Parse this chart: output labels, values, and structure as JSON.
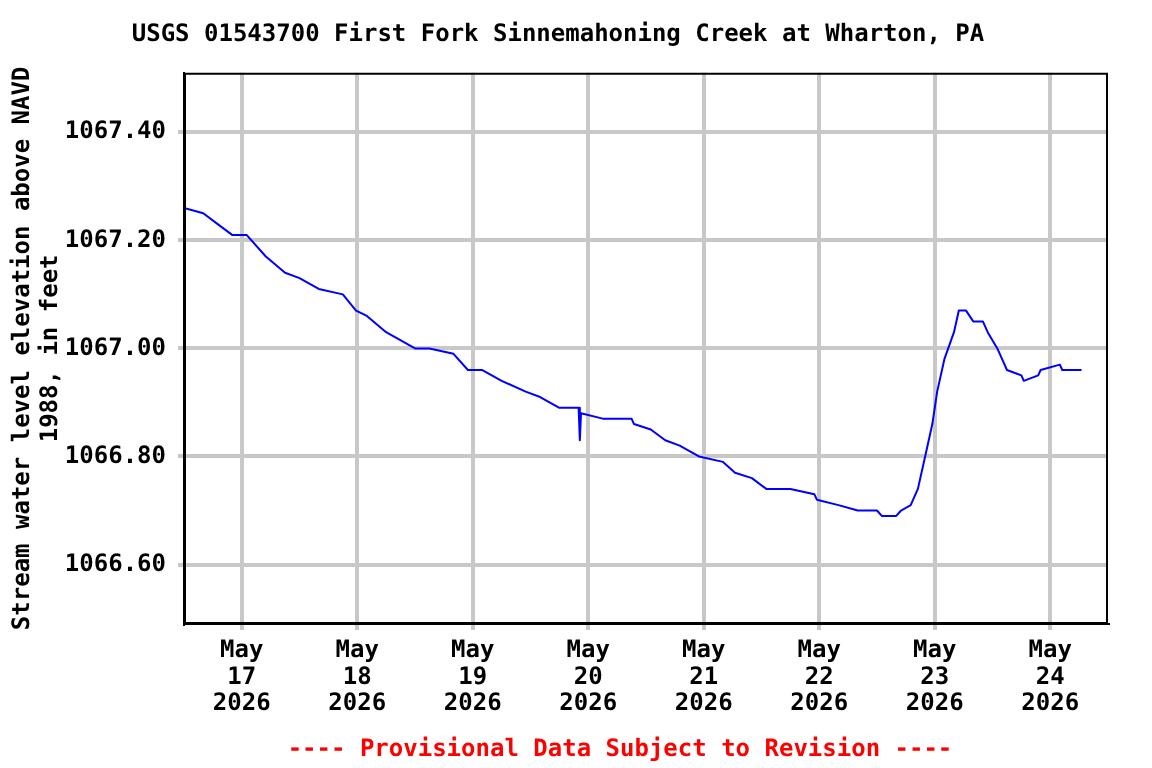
{
  "chart_data": {
    "type": "line",
    "title": "USGS 01543700 First Fork Sinnemahoning Creek at Wharton, PA",
    "ylabel": "Stream water level elevation above NAVD 1988, in feet",
    "annotations": [
      "---- Provisional Data Subject to Revision ----"
    ],
    "x": [
      "2026-05-16T12:00",
      "2026-05-16T16:00",
      "2026-05-16T19:00",
      "2026-05-16T22:00",
      "2026-05-17T01:00",
      "2026-05-17T05:00",
      "2026-05-17T09:00",
      "2026-05-17T12:00",
      "2026-05-17T16:00",
      "2026-05-17T21:00",
      "2026-05-17T23:45",
      "2026-05-18T02:00",
      "2026-05-18T06:00",
      "2026-05-18T12:00",
      "2026-05-18T15:00",
      "2026-05-18T20:00",
      "2026-05-18T23:00",
      "2026-05-19T02:00",
      "2026-05-19T06:00",
      "2026-05-19T11:00",
      "2026-05-19T14:00",
      "2026-05-19T18:00",
      "2026-05-19T22:00",
      "2026-05-19T22:15",
      "2026-05-19T22:30",
      "2026-05-20T03:00",
      "2026-05-20T09:00",
      "2026-05-20T09:30",
      "2026-05-20T13:00",
      "2026-05-20T16:00",
      "2026-05-20T19:00",
      "2026-05-20T23:00",
      "2026-05-21T04:00",
      "2026-05-21T06:30",
      "2026-05-21T10:00",
      "2026-05-21T13:00",
      "2026-05-21T18:00",
      "2026-05-21T23:00",
      "2026-05-21T23:30",
      "2026-05-22T04:00",
      "2026-05-22T08:00",
      "2026-05-22T12:00",
      "2026-05-22T13:00",
      "2026-05-22T16:00",
      "2026-05-22T17:00",
      "2026-05-22T19:00",
      "2026-05-22T20:30",
      "2026-05-22T22:00",
      "2026-05-22T23:30",
      "2026-05-23T00:30",
      "2026-05-23T02:00",
      "2026-05-23T04:00",
      "2026-05-23T05:00",
      "2026-05-23T06:30",
      "2026-05-23T08:00",
      "2026-05-23T10:00",
      "2026-05-23T11:00",
      "2026-05-23T13:00",
      "2026-05-23T14:00",
      "2026-05-23T15:00",
      "2026-05-23T18:00",
      "2026-05-23T18:30",
      "2026-05-23T21:30",
      "2026-05-23T22:00",
      "2026-05-24T02:00",
      "2026-05-24T02:30",
      "2026-05-24T06:30"
    ],
    "series": [
      {
        "color": "#0000ff",
        "values": [
          1067.26,
          1067.25,
          1067.23,
          1067.21,
          1067.21,
          1067.17,
          1067.14,
          1067.13,
          1067.11,
          1067.1,
          1067.07,
          1067.06,
          1067.03,
          1067.0,
          1067.0,
          1066.99,
          1066.96,
          1066.96,
          1066.94,
          1066.92,
          1066.91,
          1066.89,
          1066.89,
          1066.83,
          1066.88,
          1066.87,
          1066.87,
          1066.86,
          1066.85,
          1066.83,
          1066.82,
          1066.8,
          1066.79,
          1066.77,
          1066.76,
          1066.74,
          1066.74,
          1066.73,
          1066.72,
          1066.71,
          1066.7,
          1066.7,
          1066.69,
          1066.69,
          1066.7,
          1066.71,
          1066.74,
          1066.8,
          1066.86,
          1066.92,
          1066.98,
          1067.03,
          1067.07,
          1067.07,
          1067.05,
          1067.05,
          1067.03,
          1067.0,
          1066.98,
          1066.96,
          1066.95,
          1066.94,
          1066.95,
          1066.96,
          1066.97,
          1066.96,
          1066.96
        ]
      }
    ],
    "xlim": [
      "2026-05-16T12:00",
      "2026-05-24T12:00"
    ],
    "xticks": [
      {
        "value": "2026-05-17",
        "label": "May 17 2026"
      },
      {
        "value": "2026-05-18",
        "label": "May 18 2026"
      },
      {
        "value": "2026-05-19",
        "label": "May 19 2026"
      },
      {
        "value": "2026-05-20",
        "label": "May 20 2026"
      },
      {
        "value": "2026-05-21",
        "label": "May 21 2026"
      },
      {
        "value": "2026-05-22",
        "label": "May 22 2026"
      },
      {
        "value": "2026-05-23",
        "label": "May 23 2026"
      },
      {
        "value": "2026-05-24",
        "label": "May 24 2026"
      }
    ],
    "ylim": [
      1066.49,
      1067.51
    ],
    "yticks": [
      {
        "value": 1066.6,
        "label": "1066.60"
      },
      {
        "value": 1066.8,
        "label": "1066.80"
      },
      {
        "value": 1067.0,
        "label": "1067.00"
      },
      {
        "value": 1067.2,
        "label": "1067.20"
      },
      {
        "value": 1067.4,
        "label": "1067.40"
      }
    ],
    "grid": true,
    "legend": false,
    "marker": "none",
    "line_style": "solid"
  }
}
